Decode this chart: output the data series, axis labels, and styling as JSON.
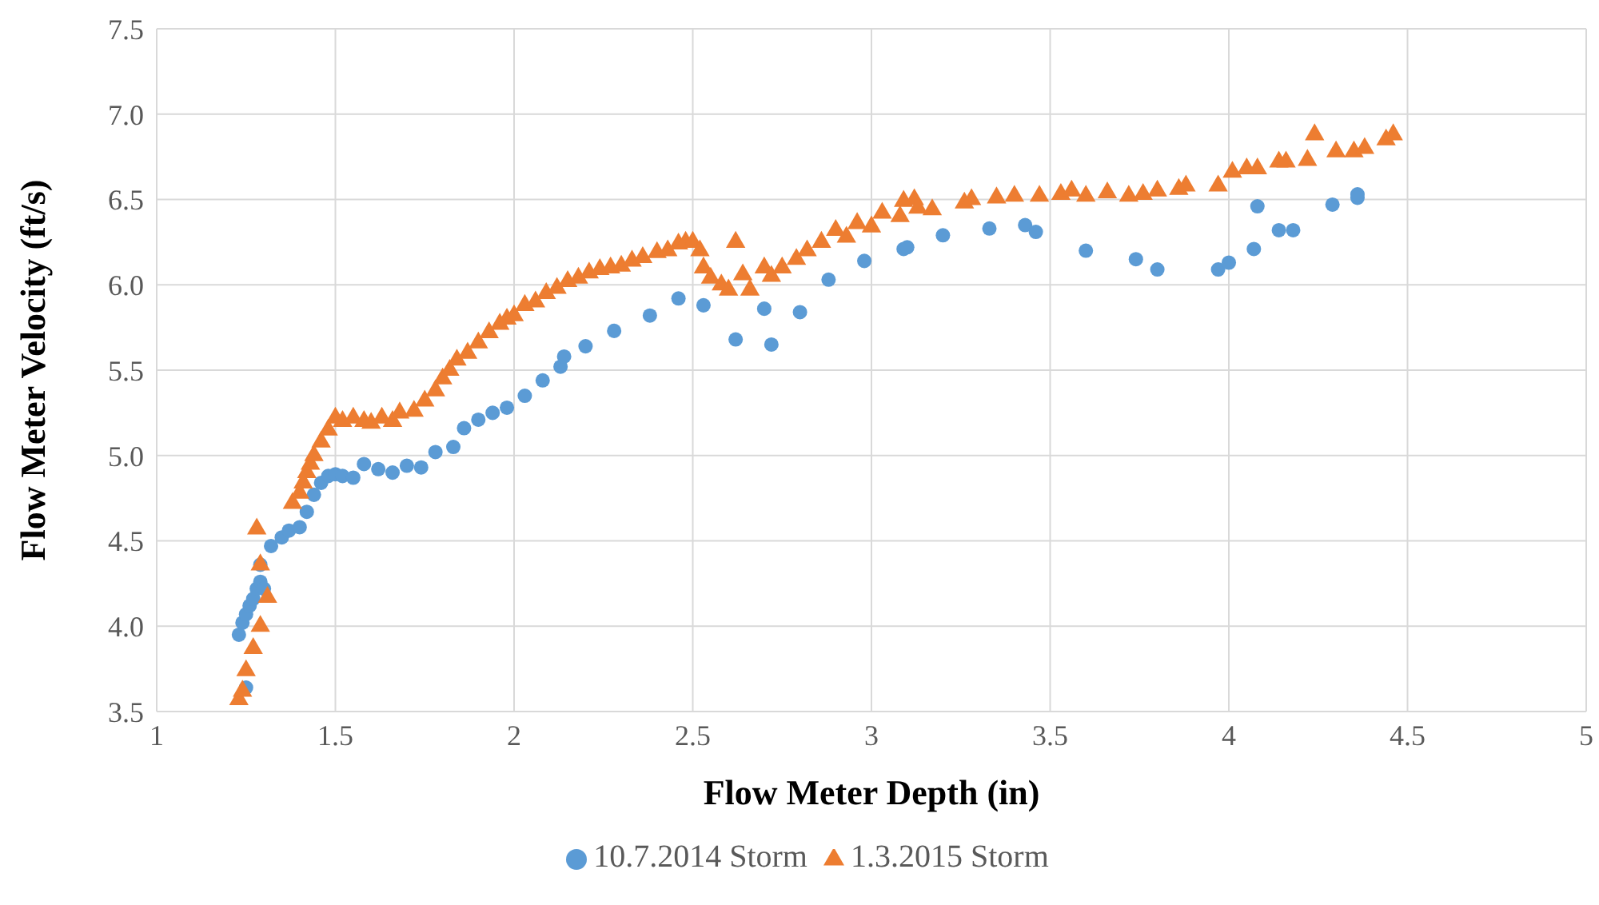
{
  "chart_data": {
    "type": "scatter",
    "xlabel": "Flow Meter Depth (in)",
    "ylabel": "Flow Meter Velocity  (ft/s)",
    "xlim": [
      1,
      5
    ],
    "xticks": [
      1,
      1.5,
      2,
      2.5,
      3,
      3.5,
      4,
      4.5,
      5
    ],
    "ylim": [
      3.5,
      7.5
    ],
    "yticks": [
      {
        "value": 3.5,
        "label": "3.5"
      },
      {
        "value": 4,
        "label": "4.0"
      },
      {
        "value": 4.5,
        "label": "4.5"
      },
      {
        "value": 5,
        "label": "5.0"
      },
      {
        "value": 5.5,
        "label": "5.5"
      },
      {
        "value": 6,
        "label": "6.0"
      },
      {
        "value": 6.5,
        "label": "6.5"
      },
      {
        "value": 7,
        "label": "7.0"
      },
      {
        "value": 7.5,
        "label": "7.5"
      }
    ],
    "grid": true,
    "legend": "bottom",
    "series": [
      {
        "name": "10.7.2014 Storm",
        "color": "#5b9bd5",
        "marker": "circle",
        "x": [
          1.23,
          1.24,
          1.25,
          1.26,
          1.27,
          1.28,
          1.29,
          1.29,
          1.3,
          1.32,
          1.35,
          1.37,
          1.4,
          1.42,
          1.44,
          1.46,
          1.48,
          1.5,
          1.52,
          1.55,
          1.58,
          1.62,
          1.66,
          1.7,
          1.74,
          1.78,
          1.83,
          1.86,
          1.9,
          1.94,
          1.98,
          2.03,
          2.08,
          2.13,
          2.14,
          2.2,
          2.28,
          2.38,
          2.46,
          2.53,
          2.62,
          2.72,
          2.7,
          2.8,
          2.88,
          2.98,
          3.09,
          3.1,
          3.2,
          3.33,
          3.43,
          3.46,
          3.6,
          3.74,
          3.8,
          3.97,
          4.0,
          4.07,
          4.08,
          4.14,
          4.18,
          4.29,
          4.36,
          4.36,
          1.25
        ],
        "values": [
          3.95,
          4.02,
          4.07,
          4.12,
          4.16,
          4.22,
          4.26,
          4.36,
          4.22,
          4.47,
          4.52,
          4.56,
          4.58,
          4.67,
          4.77,
          4.84,
          4.88,
          4.89,
          4.88,
          4.87,
          4.95,
          4.92,
          4.9,
          4.94,
          4.93,
          5.02,
          5.05,
          5.16,
          5.21,
          5.25,
          5.28,
          5.35,
          5.44,
          5.52,
          5.58,
          5.64,
          5.73,
          5.82,
          5.92,
          5.88,
          5.68,
          5.65,
          5.86,
          5.84,
          6.03,
          6.14,
          6.21,
          6.22,
          6.29,
          6.33,
          6.35,
          6.31,
          6.2,
          6.15,
          6.09,
          6.09,
          6.13,
          6.21,
          6.46,
          6.32,
          6.32,
          6.47,
          6.51,
          6.53,
          3.64
        ]
      },
      {
        "name": "1.3.2015 Storm",
        "color": "#ed7d31",
        "marker": "triangle",
        "x": [
          1.23,
          1.24,
          1.25,
          1.27,
          1.29,
          1.31,
          1.29,
          1.28,
          1.38,
          1.4,
          1.41,
          1.42,
          1.43,
          1.44,
          1.46,
          1.48,
          1.5,
          1.52,
          1.55,
          1.58,
          1.6,
          1.63,
          1.66,
          1.68,
          1.72,
          1.75,
          1.78,
          1.8,
          1.82,
          1.84,
          1.87,
          1.9,
          1.93,
          1.96,
          1.98,
          2.0,
          2.03,
          2.06,
          2.09,
          2.12,
          2.15,
          2.18,
          2.21,
          2.24,
          2.27,
          2.3,
          2.33,
          2.36,
          2.4,
          2.43,
          2.46,
          2.48,
          2.5,
          2.52,
          2.53,
          2.55,
          2.58,
          2.6,
          2.62,
          2.64,
          2.66,
          2.7,
          2.72,
          2.75,
          2.79,
          2.82,
          2.86,
          2.9,
          2.93,
          2.96,
          3.0,
          3.03,
          3.08,
          3.09,
          3.12,
          3.13,
          3.17,
          3.26,
          3.28,
          3.35,
          3.4,
          3.47,
          3.53,
          3.56,
          3.6,
          3.66,
          3.72,
          3.76,
          3.8,
          3.86,
          3.88,
          3.97,
          4.01,
          4.05,
          4.08,
          4.14,
          4.16,
          4.22,
          4.24,
          4.3,
          4.35,
          4.38,
          4.44,
          4.46
        ],
        "values": [
          3.57,
          3.62,
          3.74,
          3.87,
          4.0,
          4.17,
          4.36,
          4.57,
          4.72,
          4.78,
          4.84,
          4.9,
          4.95,
          5.0,
          5.08,
          5.15,
          5.22,
          5.2,
          5.22,
          5.2,
          5.19,
          5.22,
          5.2,
          5.25,
          5.26,
          5.32,
          5.38,
          5.45,
          5.5,
          5.56,
          5.6,
          5.66,
          5.72,
          5.77,
          5.8,
          5.82,
          5.88,
          5.9,
          5.95,
          5.98,
          6.02,
          6.04,
          6.07,
          6.09,
          6.1,
          6.11,
          6.14,
          6.16,
          6.19,
          6.2,
          6.24,
          6.25,
          6.25,
          6.2,
          6.1,
          6.04,
          6.0,
          5.97,
          6.25,
          6.06,
          5.97,
          6.1,
          6.05,
          6.1,
          6.15,
          6.2,
          6.25,
          6.32,
          6.28,
          6.36,
          6.34,
          6.42,
          6.4,
          6.49,
          6.5,
          6.45,
          6.44,
          6.48,
          6.5,
          6.51,
          6.52,
          6.52,
          6.53,
          6.55,
          6.52,
          6.54,
          6.52,
          6.53,
          6.55,
          6.56,
          6.58,
          6.58,
          6.66,
          6.68,
          6.68,
          6.72,
          6.72,
          6.73,
          6.88,
          6.78,
          6.78,
          6.8,
          6.85,
          6.88
        ]
      }
    ]
  }
}
